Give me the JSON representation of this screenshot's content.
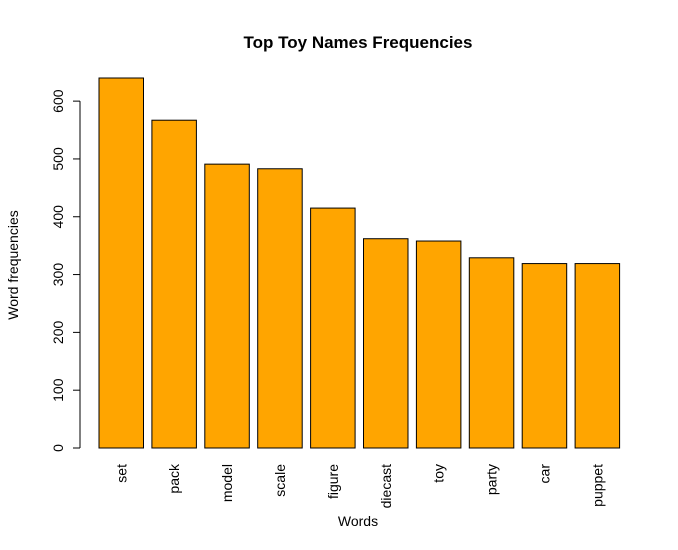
{
  "chart_data": {
    "type": "bar",
    "title": "Top Toy Names Frequencies",
    "xlabel": "Words",
    "ylabel": "Word frequencies",
    "categories": [
      "set",
      "pack",
      "model",
      "scale",
      "figure",
      "diecast",
      "toy",
      "party",
      "car",
      "puppet"
    ],
    "values": [
      640,
      567,
      491,
      483,
      415,
      362,
      358,
      329,
      319,
      319
    ],
    "ylim": [
      0,
      640
    ],
    "yticks": [
      0,
      100,
      200,
      300,
      400,
      500,
      600
    ],
    "bar_color": "#FFA500",
    "grid": false
  }
}
